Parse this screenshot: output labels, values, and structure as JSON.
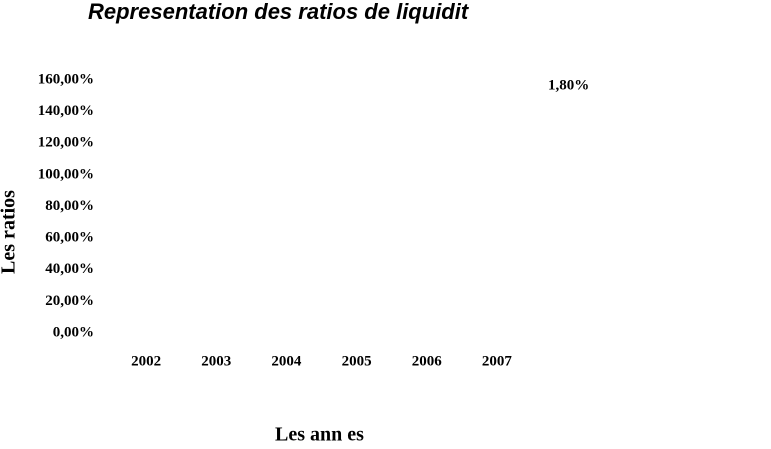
{
  "chart_data": {
    "type": "bar",
    "title": "Representation des ratios de liquidit",
    "categories": [
      "2002",
      "2003",
      "2004",
      "2005",
      "2006",
      "2007"
    ],
    "x_label": "Les ann es",
    "y_label": "Les ratios",
    "annotation": "1,80%",
    "ylim": [
      0,
      160
    ],
    "yticks": [
      {
        "value": 0,
        "label": "0,00%"
      },
      {
        "value": 20,
        "label": "20,00%"
      },
      {
        "value": 40,
        "label": "40,00%"
      },
      {
        "value": 60,
        "label": "60,00%"
      },
      {
        "value": 80,
        "label": "80,00%"
      },
      {
        "value": 100,
        "label": "100,00%"
      },
      {
        "value": 120,
        "label": "120,00%"
      },
      {
        "value": 140,
        "label": "140,00%"
      },
      {
        "value": 160,
        "label": "160,00%"
      }
    ],
    "grid": false
  }
}
